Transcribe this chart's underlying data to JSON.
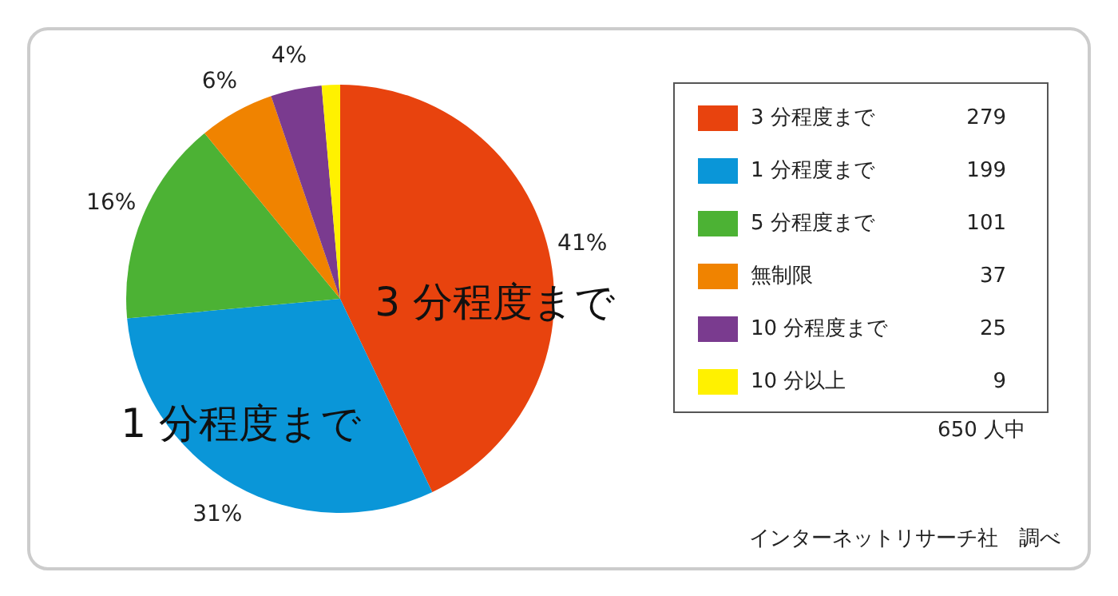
{
  "chart_data": {
    "type": "pie",
    "categories": [
      "3 分程度まで",
      "1 分程度まで",
      "5 分程度まで",
      "無制限",
      "10 分程度まで",
      "10 分以上"
    ],
    "values": [
      279,
      199,
      101,
      37,
      25,
      9
    ],
    "colors": [
      "#e8430e",
      "#0a96d8",
      "#4cb234",
      "#f08300",
      "#7a3b8f",
      "#fff100"
    ],
    "value_labels": [
      "279",
      "199",
      "101",
      "37",
      "25",
      "9"
    ],
    "legend": "right",
    "annotations": [
      "41%",
      "31%",
      "16%",
      "6%",
      "4%",
      "3 分程度まで",
      "1 分程度まで",
      "650 人中",
      "インターネットリサーチ社　調べ"
    ]
  }
}
